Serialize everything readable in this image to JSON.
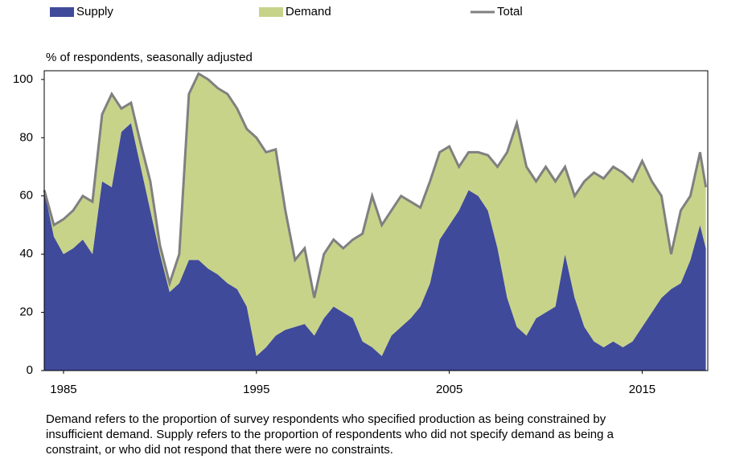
{
  "chart_data": {
    "type": "stacked-area",
    "y_axis_label": "% of respondents, seasonally adjusted",
    "note": [
      "Demand refers to the proportion of survey respondents who specified production as being constrained by",
      "insufficient demand.  Supply  refers to the proportion of respondents who did not specify demand as being a",
      "constraint, or who did not respond that there were no constraints."
    ],
    "x": [
      1984,
      1984.5,
      1985,
      1985.5,
      1986,
      1986.5,
      1987,
      1987.5,
      1988,
      1988.5,
      1989,
      1989.5,
      1990,
      1990.5,
      1991,
      1991.5,
      1992,
      1992.5,
      1993,
      1993.5,
      1994,
      1994.5,
      1995,
      1995.5,
      1996,
      1996.5,
      1997,
      1997.5,
      1998,
      1998.5,
      1999,
      1999.5,
      2000,
      2000.5,
      2001,
      2001.5,
      2002,
      2002.5,
      2003,
      2003.5,
      2004,
      2004.5,
      2005,
      2005.5,
      2006,
      2006.5,
      2007,
      2007.5,
      2008,
      2008.5,
      2009,
      2009.5,
      2010,
      2010.5,
      2011,
      2011.5,
      2012,
      2012.5,
      2013,
      2013.5,
      2014,
      2014.5,
      2015,
      2015.5,
      2016,
      2016.5,
      2017,
      2017.5,
      2018,
      2018.3
    ],
    "series": [
      {
        "name": "Supply",
        "color": "#3f4a9a",
        "values": [
          62,
          46,
          40,
          42,
          45,
          40,
          65,
          63,
          82,
          85,
          70,
          55,
          40,
          27,
          30,
          38,
          38,
          35,
          33,
          30,
          28,
          22,
          5,
          8,
          12,
          14,
          15,
          16,
          12,
          18,
          22,
          20,
          18,
          10,
          8,
          5,
          12,
          15,
          18,
          22,
          30,
          45,
          50,
          55,
          62,
          60,
          55,
          42,
          25,
          15,
          12,
          18,
          20,
          22,
          40,
          25,
          15,
          10,
          8,
          10,
          8,
          10,
          15,
          20,
          25,
          28,
          30,
          38,
          50,
          42
        ]
      },
      {
        "name": "Demand",
        "color": "#c8d38a",
        "values": [
          0,
          4,
          12,
          13,
          15,
          18,
          23,
          32,
          8,
          7,
          8,
          10,
          3,
          3,
          10,
          57,
          64,
          65,
          64,
          65,
          62,
          61,
          75,
          67,
          64,
          41,
          23,
          26,
          13,
          22,
          23,
          22,
          27,
          37,
          52,
          45,
          43,
          45,
          40,
          34,
          35,
          30,
          27,
          15,
          13,
          15,
          19,
          28,
          50,
          70,
          58,
          47,
          50,
          43,
          30,
          35,
          50,
          58,
          58,
          60,
          60,
          55,
          57,
          45,
          35,
          12,
          25,
          22,
          25,
          21
        ]
      },
      {
        "name": "Total",
        "color": "#808080",
        "line": true,
        "values": [
          62,
          50,
          52,
          55,
          60,
          58,
          88,
          95,
          90,
          92,
          78,
          65,
          43,
          30,
          40,
          95,
          102,
          100,
          97,
          95,
          90,
          83,
          80,
          75,
          76,
          55,
          38,
          42,
          25,
          40,
          45,
          42,
          45,
          47,
          60,
          50,
          55,
          60,
          58,
          56,
          65,
          75,
          77,
          70,
          75,
          75,
          74,
          70,
          75,
          85,
          70,
          65,
          70,
          65,
          70,
          60,
          65,
          68,
          66,
          70,
          68,
          65,
          72,
          65,
          60,
          40,
          55,
          60,
          75,
          63
        ]
      }
    ],
    "xlim": [
      1984,
      2018.4
    ],
    "xticks": [
      1985,
      1995,
      2005,
      2015
    ],
    "ylim": [
      0,
      103
    ],
    "yticks": [
      0,
      20,
      40,
      60,
      80,
      100
    ],
    "grid": false
  }
}
